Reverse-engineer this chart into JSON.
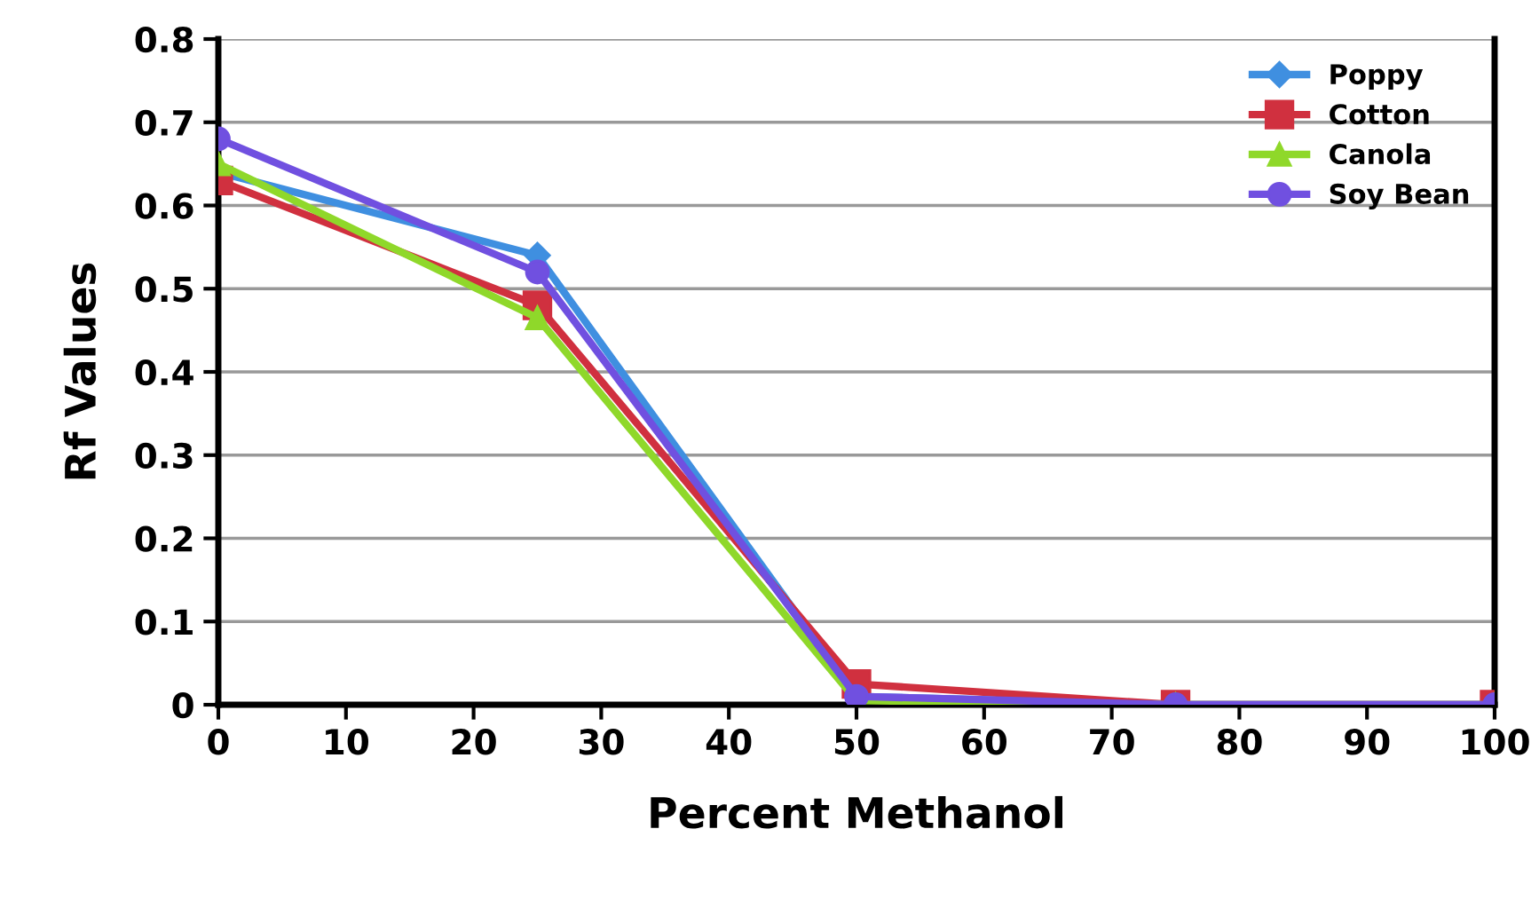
{
  "chart_data": {
    "type": "line",
    "xlabel": "Percent Methanol",
    "ylabel": "Rf Values",
    "x": [
      0,
      25,
      50,
      75,
      100
    ],
    "series": [
      {
        "name": "Poppy",
        "color": "#3f8fe0",
        "marker": "diamond",
        "values": [
          0.64,
          0.54,
          0.01,
          0,
          0
        ]
      },
      {
        "name": "Cotton",
        "color": "#d0303f",
        "marker": "square",
        "values": [
          0.63,
          0.48,
          0.025,
          0,
          0
        ]
      },
      {
        "name": "Canola",
        "color": "#8fd82a",
        "marker": "triangle",
        "values": [
          0.65,
          0.465,
          0.005,
          0,
          0
        ]
      },
      {
        "name": "Soy Bean",
        "color": "#7050e0",
        "marker": "circle",
        "values": [
          0.68,
          0.52,
          0.01,
          0,
          0
        ]
      }
    ],
    "xlim": [
      0,
      100
    ],
    "ylim": [
      0,
      0.8
    ],
    "xticks": [
      0,
      10,
      20,
      30,
      40,
      50,
      60,
      70,
      80,
      90,
      100
    ],
    "yticks": [
      0,
      0.1,
      0.2,
      0.3,
      0.4,
      0.5,
      0.6,
      0.7,
      0.8
    ],
    "grid": "y",
    "legend": "top right",
    "line_style": "solid"
  }
}
